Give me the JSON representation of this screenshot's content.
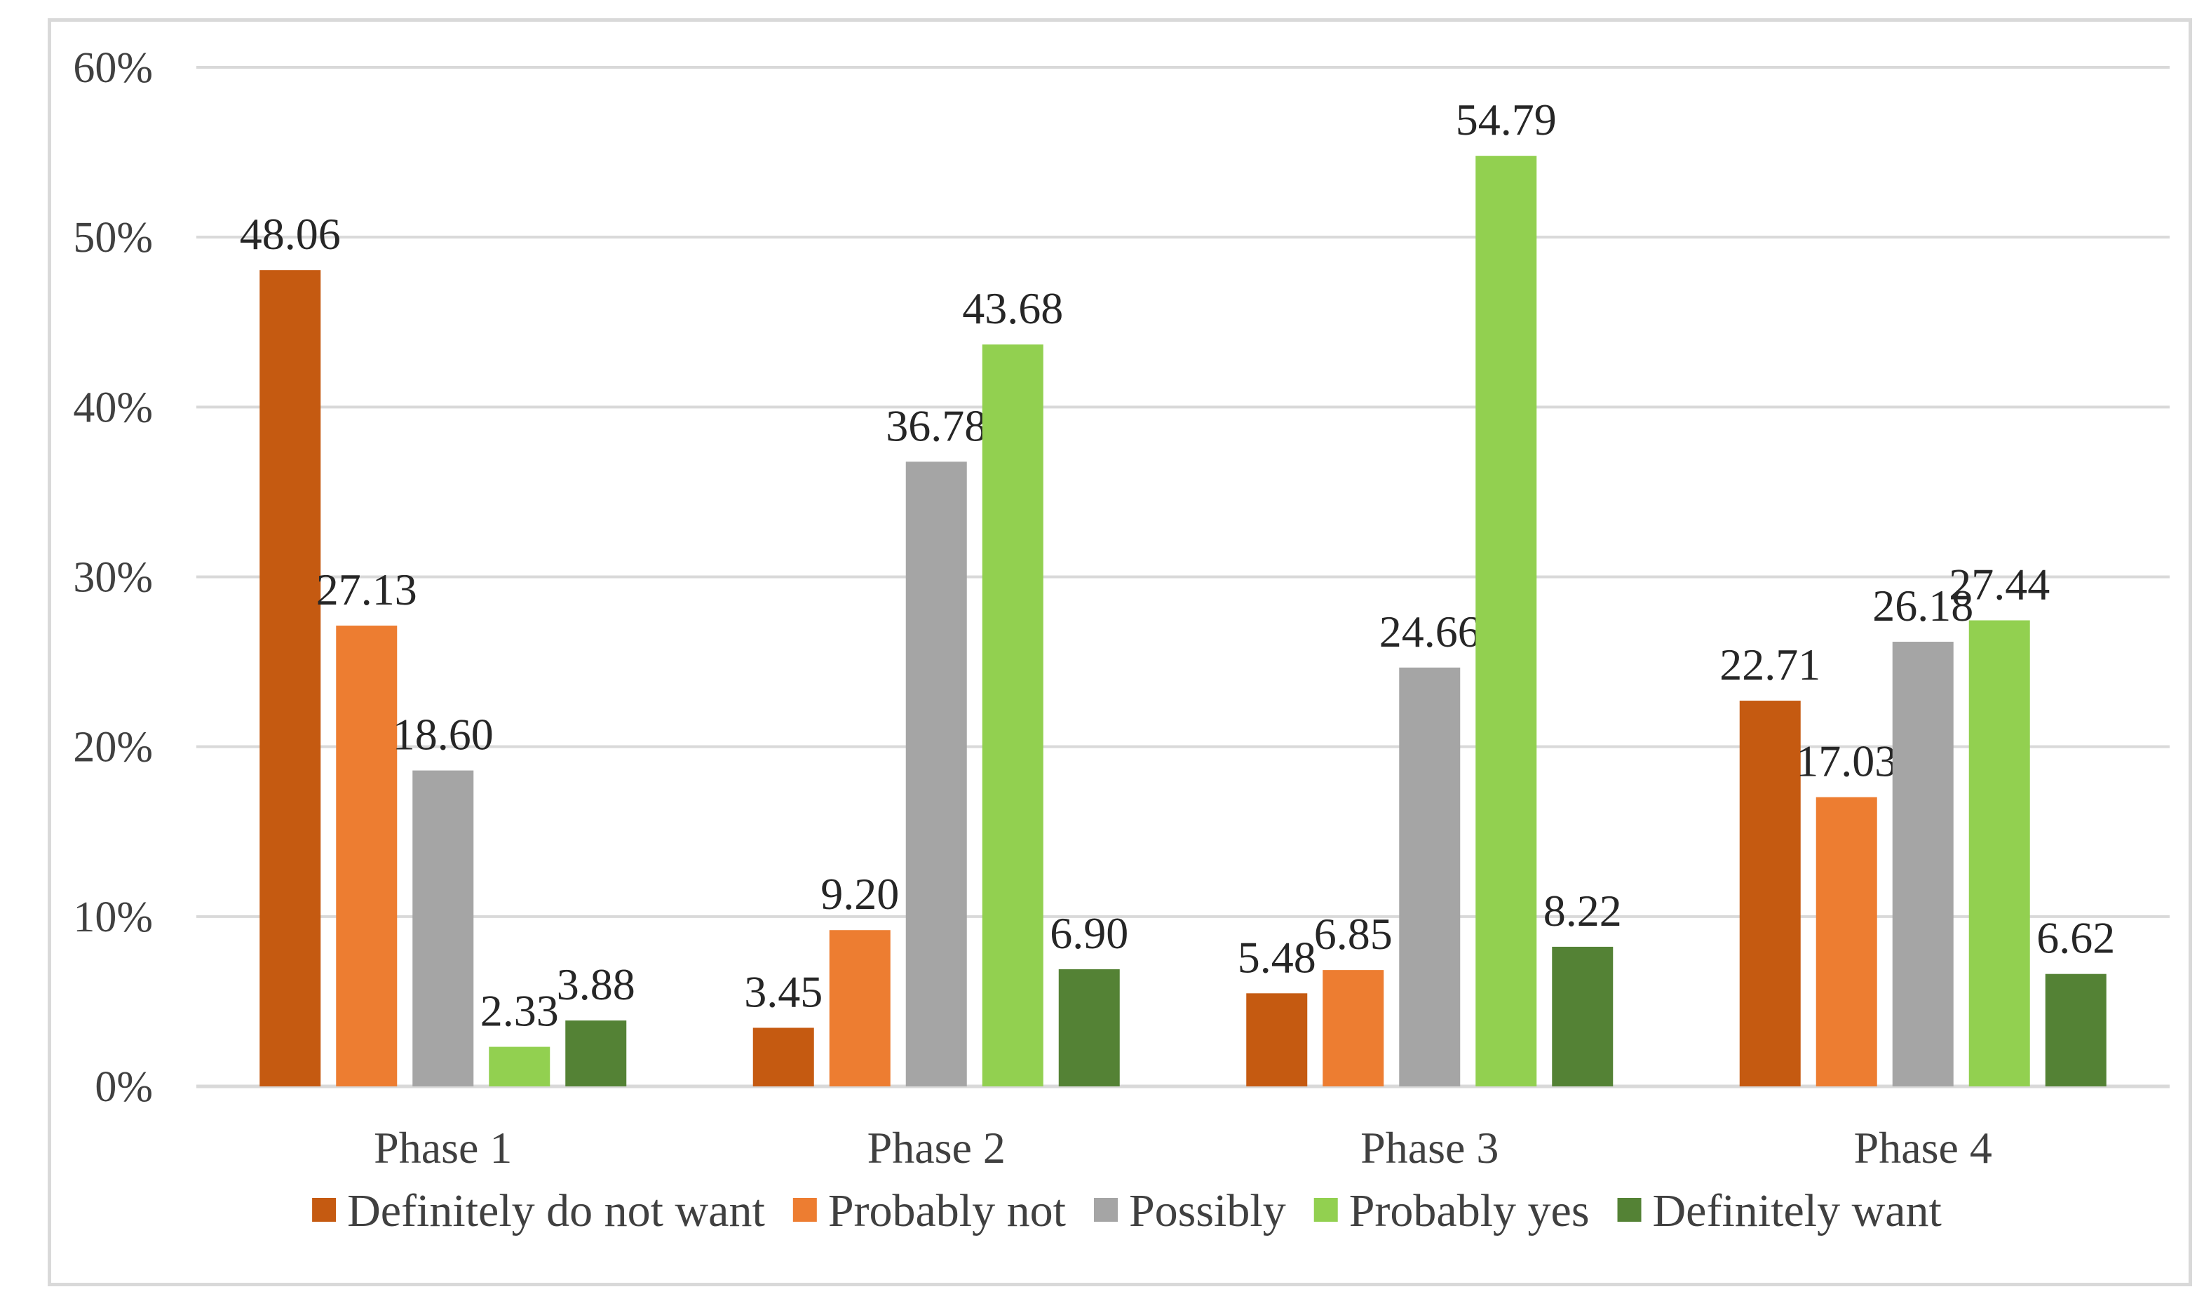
{
  "chart_data": {
    "type": "bar",
    "title": "",
    "xlabel": "",
    "ylabel": "",
    "categories": [
      "Phase 1",
      "Phase 2",
      "Phase 3",
      "Phase 4"
    ],
    "series": [
      {
        "name": "Definitely do not want",
        "color": "#c55a11",
        "values": [
          48.06,
          3.45,
          5.48,
          22.71
        ],
        "labels": [
          "48.06",
          "3.45",
          "5.48",
          "22.71"
        ]
      },
      {
        "name": "Probably not",
        "color": "#ed7d31",
        "values": [
          27.13,
          9.2,
          6.85,
          17.03
        ],
        "labels": [
          "27.13",
          "9.20",
          "6.85",
          "17.03"
        ]
      },
      {
        "name": "Possibly",
        "color": "#a5a5a5",
        "values": [
          18.6,
          36.78,
          24.66,
          26.18
        ],
        "labels": [
          "18.60",
          "36.78",
          "24.66",
          "26.18"
        ]
      },
      {
        "name": "Probably yes",
        "color": "#92d050",
        "values": [
          2.33,
          43.68,
          54.79,
          27.44
        ],
        "labels": [
          "2.33",
          "43.68",
          "54.79",
          "27.44"
        ]
      },
      {
        "name": "Definitely want",
        "color": "#548235",
        "values": [
          3.88,
          6.9,
          8.22,
          6.62
        ],
        "labels": [
          "3.88",
          "6.90",
          "8.22",
          "6.62"
        ]
      }
    ],
    "ylim": [
      0,
      60
    ],
    "yticks": [
      0,
      10,
      20,
      30,
      40,
      50,
      60
    ],
    "ytick_labels": [
      "0%",
      "10%",
      "20%",
      "30%",
      "40%",
      "50%",
      "60%"
    ],
    "grid": true,
    "legend": "bottom",
    "gridline_color": "#d9d9d9",
    "frame_color": "#d9d9d9"
  }
}
